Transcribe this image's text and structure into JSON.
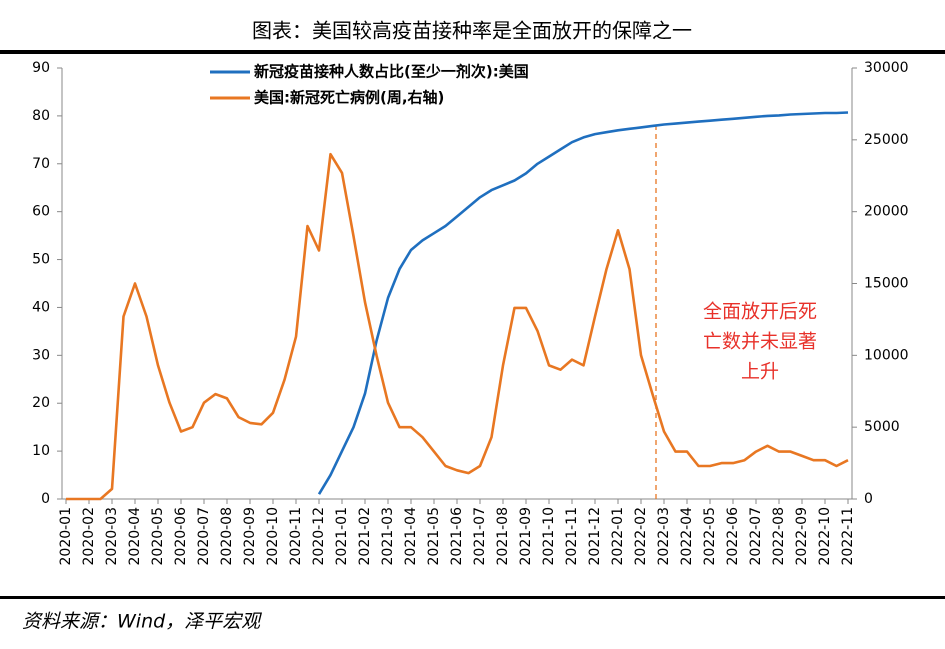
{
  "chart_data": {
    "type": "line",
    "title": "图表：美国较高疫苗接种率是全面放开的保障之一",
    "source": "资料来源：Wind，泽平宏观",
    "annotation": [
      "全面放开后死",
      "亡数并未显著",
      "上升"
    ],
    "categories": [
      "2020-01",
      null,
      "2020-02",
      null,
      "2020-03",
      null,
      "2020-04",
      null,
      "2020-05",
      null,
      "2020-06",
      null,
      "2020-07",
      null,
      "2020-08",
      null,
      "2020-09",
      null,
      "2020-10",
      null,
      "2020-11",
      null,
      "2020-12",
      null,
      "2021-01",
      null,
      "2021-02",
      null,
      "2021-03",
      null,
      "2021-04",
      null,
      "2021-05",
      null,
      "2021-06",
      null,
      "2021-07",
      null,
      "2021-08",
      null,
      "2021-09",
      null,
      "2021-10",
      null,
      "2021-11",
      null,
      "2021-12",
      null,
      "2022-01",
      null,
      "2022-02",
      null,
      "2022-03",
      null,
      "2022-04",
      null,
      "2022-05",
      null,
      "2022-06",
      null,
      "2022-07",
      null,
      "2022-08",
      null,
      "2022-09",
      null,
      "2022-10",
      null,
      "2022-11"
    ],
    "series": [
      {
        "name": "新冠疫苗接种人数占比(至少一剂次):美国",
        "color": "#1f6fbf",
        "values": [
          null,
          null,
          null,
          null,
          null,
          null,
          null,
          null,
          null,
          null,
          null,
          null,
          null,
          null,
          null,
          null,
          null,
          null,
          null,
          null,
          null,
          null,
          1,
          5,
          10,
          15,
          22,
          33,
          42,
          48,
          52,
          54,
          55.5,
          57,
          59,
          61,
          63,
          64.5,
          65.5,
          66.5,
          68,
          70,
          71.5,
          73,
          74.5,
          75.5,
          76.2,
          76.6,
          77,
          77.3,
          77.6,
          77.9,
          78.2,
          78.4,
          78.6,
          78.8,
          79,
          79.2,
          79.4,
          79.6,
          79.8,
          80,
          80.1,
          80.3,
          80.4,
          80.5,
          80.6,
          80.6,
          80.7
        ]
      },
      {
        "name": "美国:新冠死亡病例(周,右轴)",
        "color": "#e87722",
        "axis": "y2",
        "values": [
          0,
          0,
          0,
          0,
          700,
          12700,
          15000,
          12700,
          9300,
          6700,
          4700,
          5000,
          6700,
          7300,
          7000,
          5700,
          5300,
          5200,
          6000,
          8300,
          11300,
          19000,
          17300,
          24000,
          22700,
          18300,
          13700,
          10000,
          6700,
          5000,
          5000,
          4300,
          3300,
          2300,
          2000,
          1800,
          2300,
          4300,
          9300,
          13300,
          13300,
          11700,
          9300,
          9000,
          9700,
          9300,
          12700,
          16000,
          18700,
          16000,
          10000,
          7300,
          4700,
          3300,
          3300,
          2300,
          2300,
          2500,
          2500,
          2700,
          3300,
          3700,
          3300,
          3300,
          3000,
          2700,
          2700,
          2300,
          2700
        ]
      }
    ],
    "ylim": [
      0,
      90
    ],
    "yticks": [
      0,
      10,
      20,
      30,
      40,
      50,
      60,
      70,
      80,
      90
    ],
    "y2lim": [
      0,
      30000
    ],
    "y2ticks": [
      0,
      5000,
      10000,
      15000,
      20000,
      25000,
      30000
    ]
  }
}
